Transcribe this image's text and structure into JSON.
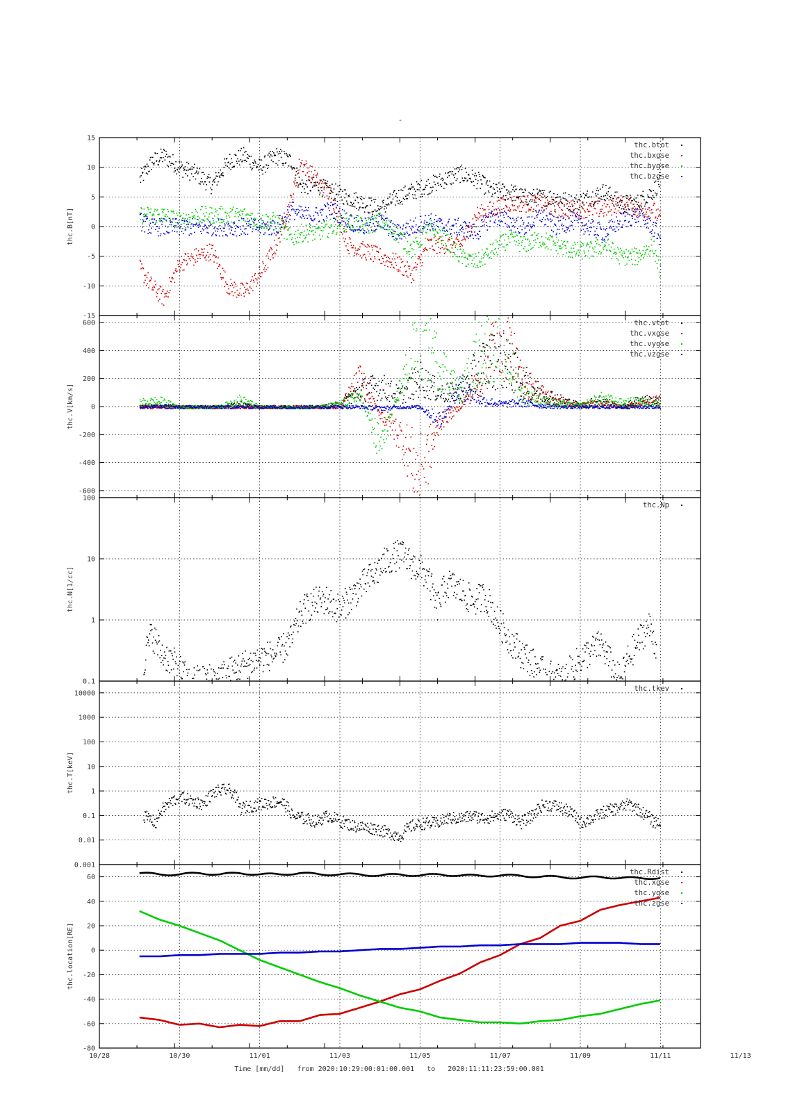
{
  "top_mark": "-",
  "footer": {
    "time_label": "Time [mm/dd]",
    "from_label": "from",
    "start": "2020:10:29:00:01:00.001",
    "to_label": "to",
    "end": "2020:11:11:23:59:00.001"
  },
  "colors": {
    "black": "#000000",
    "red": "#cc0000",
    "green": "#00cc00",
    "blue": "#0000cc"
  },
  "chart_data": [
    {
      "type": "scatter",
      "id": "B",
      "ylabel": "thc.B[nT]",
      "ylim": [
        -15,
        15
      ],
      "yscale": "linear",
      "ytick_labels": [
        "15",
        "10",
        "5",
        "0",
        "-5",
        "-10",
        "-15"
      ],
      "xlim": [
        0,
        15
      ],
      "x_tick_labels": [
        "10/28",
        "10/30",
        "11/01",
        "11/03",
        "11/05",
        "11/07",
        "11/09",
        "11/11",
        "11/13"
      ],
      "grid": true,
      "legend_position": "top-right",
      "series": [
        {
          "name": "thc.btot",
          "color": "#000000",
          "x": [
            1,
            1.3,
            1.6,
            2,
            2.4,
            2.8,
            3.2,
            3.6,
            4,
            4.4,
            4.8,
            5,
            5.4,
            5.8,
            6.2,
            6.6,
            7,
            7.4,
            7.8,
            8.2,
            8.6,
            9,
            9.4,
            9.8,
            10.2,
            10.6,
            11,
            11.4,
            11.8,
            12.2,
            12.6,
            13,
            13.4,
            13.8,
            14
          ],
          "y": [
            8,
            11,
            12,
            10,
            9,
            7,
            11,
            12,
            10,
            12,
            11,
            7,
            7,
            6,
            5,
            4,
            3,
            5,
            6,
            7,
            8,
            9,
            8,
            6,
            6,
            5,
            5,
            5,
            4,
            5,
            6,
            4,
            4,
            6,
            8
          ]
        },
        {
          "name": "thc.bxgse",
          "color": "#cc0000",
          "x": [
            1,
            1.3,
            1.6,
            2,
            2.4,
            2.8,
            3.2,
            3.6,
            4,
            4.4,
            4.8,
            5,
            5.4,
            5.8,
            6.2,
            6.6,
            7,
            7.4,
            7.8,
            8.2,
            8.6,
            9,
            9.4,
            9.8,
            10.2,
            10.6,
            11,
            11.4,
            11.8,
            12.2,
            12.6,
            13,
            13.4,
            13.8,
            14
          ],
          "y": [
            -7,
            -10,
            -12,
            -6,
            -5,
            -4,
            -10,
            -11,
            -8,
            -3,
            5,
            11,
            8,
            5,
            -3,
            -4,
            -5,
            -6,
            -8,
            -3,
            -3,
            -3,
            2,
            3,
            4,
            4,
            4,
            3,
            3,
            3,
            3,
            4,
            3,
            3,
            1
          ]
        },
        {
          "name": "thc.bygse",
          "color": "#00cc00",
          "x": [
            1,
            1.3,
            1.6,
            2,
            2.4,
            2.8,
            3.2,
            3.6,
            4,
            4.4,
            4.8,
            5,
            5.4,
            5.8,
            6.2,
            6.6,
            7,
            7.4,
            7.8,
            8.2,
            8.6,
            9,
            9.4,
            9.8,
            10.2,
            10.6,
            11,
            11.4,
            11.8,
            12.2,
            12.6,
            13,
            13.4,
            13.8,
            14
          ],
          "y": [
            2,
            2,
            2,
            1,
            2,
            2,
            2,
            2,
            1,
            1,
            -2,
            -1,
            -1,
            0,
            1,
            0,
            1,
            -1,
            -4,
            0,
            -2,
            -5,
            -6,
            -4,
            -2,
            -3,
            -2,
            -3,
            -4,
            -4,
            -3,
            -5,
            -5,
            -3,
            -8
          ]
        },
        {
          "name": "thc.bzgse",
          "color": "#0000cc",
          "x": [
            1,
            1.3,
            1.6,
            2,
            2.4,
            2.8,
            3.2,
            3.6,
            4,
            4.4,
            4.8,
            5,
            5.4,
            5.8,
            6.2,
            6.6,
            7,
            7.4,
            7.8,
            8.2,
            8.6,
            9,
            9.4,
            9.8,
            10.2,
            10.6,
            11,
            11.4,
            11.8,
            12.2,
            12.6,
            13,
            13.4,
            13.8,
            14
          ],
          "y": [
            1,
            0,
            0,
            0,
            0,
            0,
            0,
            0,
            0,
            0,
            3,
            2,
            2,
            3,
            1,
            0,
            1,
            -1,
            0,
            1,
            0,
            0,
            -1,
            2,
            1,
            0,
            2,
            0,
            1,
            0,
            -1,
            1,
            2,
            0,
            -2
          ]
        }
      ]
    },
    {
      "type": "scatter",
      "id": "V",
      "ylabel": "thc.V[km/s]",
      "ylim": [
        -650,
        650
      ],
      "yscale": "linear",
      "ytick_values": [
        600,
        400,
        200,
        0,
        -200,
        -400,
        -600
      ],
      "ytick_labels": [
        "600",
        "400",
        "200",
        "0",
        "-200",
        "-400",
        "-600"
      ],
      "xlim": [
        0,
        15
      ],
      "grid": true,
      "legend_position": "top-right",
      "series": [
        {
          "name": "thc.vtot",
          "color": "#000000",
          "x": [
            1,
            1.5,
            2,
            2.5,
            3,
            3.5,
            4,
            4.5,
            5,
            5.5,
            6,
            6.5,
            7,
            7.5,
            8,
            8.5,
            9,
            9.5,
            10,
            10.5,
            11,
            11.5,
            12,
            12.5,
            13,
            13.5,
            14
          ],
          "y": [
            0,
            10,
            0,
            0,
            0,
            20,
            0,
            0,
            0,
            0,
            20,
            120,
            150,
            80,
            200,
            100,
            100,
            300,
            350,
            200,
            100,
            50,
            10,
            50,
            0,
            50,
            40
          ]
        },
        {
          "name": "thc.vxgse",
          "color": "#cc0000",
          "x": [
            1,
            1.5,
            2,
            2.5,
            3,
            3.5,
            4,
            4.5,
            5,
            5.5,
            6,
            6.5,
            7,
            7.5,
            8,
            8.5,
            9,
            9.5,
            10,
            10.5,
            11,
            11.5,
            12,
            12.5,
            13,
            13.5,
            14
          ],
          "y": [
            0,
            0,
            0,
            0,
            0,
            0,
            0,
            0,
            0,
            0,
            0,
            200,
            -50,
            -200,
            -500,
            -100,
            0,
            200,
            600,
            200,
            100,
            30,
            10,
            30,
            0,
            20,
            50
          ]
        },
        {
          "name": "thc.vygse",
          "color": "#00cc00",
          "x": [
            1,
            1.5,
            2,
            2.5,
            3,
            3.5,
            4,
            4.5,
            5,
            5.5,
            6,
            6.5,
            7,
            7.5,
            8,
            8.5,
            9,
            9.5,
            10,
            10.5,
            11,
            11.5,
            12,
            12.5,
            13,
            13.5,
            14
          ],
          "y": [
            30,
            40,
            0,
            0,
            0,
            50,
            0,
            0,
            0,
            0,
            20,
            80,
            -300,
            150,
            500,
            300,
            100,
            400,
            500,
            100,
            50,
            20,
            10,
            60,
            30,
            40,
            20
          ]
        },
        {
          "name": "thc.vzgse",
          "color": "#0000cc",
          "x": [
            1,
            1.5,
            2,
            2.5,
            3,
            3.5,
            4,
            4.5,
            5,
            5.5,
            6,
            6.5,
            7,
            7.5,
            8,
            8.5,
            9,
            9.5,
            10,
            10.5,
            11,
            11.5,
            12,
            12.5,
            13,
            13.5,
            14
          ],
          "y": [
            0,
            0,
            0,
            0,
            0,
            0,
            0,
            0,
            0,
            0,
            0,
            0,
            -10,
            0,
            0,
            -100,
            150,
            50,
            20,
            30,
            10,
            0,
            0,
            0,
            0,
            0,
            0
          ]
        }
      ]
    },
    {
      "type": "scatter",
      "id": "N",
      "ylabel": "thc.N[1/cc]",
      "ylim": [
        0.1,
        100
      ],
      "yscale": "log",
      "ytick_values": [
        100,
        10,
        1,
        0.1
      ],
      "ytick_labels": [
        "100",
        "10",
        "1",
        "0.1"
      ],
      "xlim": [
        0,
        15
      ],
      "grid": true,
      "legend_position": "top-right",
      "series": [
        {
          "name": "thc.Np",
          "color": "#000000",
          "x": [
            1.1,
            1.3,
            1.5,
            2.2,
            3,
            3.3,
            4.5,
            4.8,
            5.1,
            5.4,
            5.6,
            6,
            6.3,
            6.6,
            6.9,
            7.2,
            7.5,
            7.8,
            8.1,
            8.4,
            8.7,
            9,
            9.3,
            9.6,
            9.9,
            10.2,
            10.5,
            10.8,
            11,
            11.3,
            11.6,
            11.9,
            12.2,
            12.5,
            12.8,
            13,
            13.4,
            13.7,
            13.9
          ],
          "y": [
            0.2,
            0.6,
            0.3,
            0.1,
            0.12,
            0.15,
            0.3,
            0.5,
            1.5,
            2,
            2.2,
            1.5,
            2.5,
            4,
            6,
            10,
            12,
            8,
            6,
            1.5,
            4,
            3,
            2,
            2.5,
            1,
            0.5,
            0.3,
            0.2,
            0.15,
            0.12,
            0.11,
            0.2,
            0.3,
            0.4,
            0.15,
            0.1,
            0.4,
            0.8,
            0.3
          ]
        }
      ]
    },
    {
      "type": "scatter",
      "id": "T",
      "ylabel": "thc.T[keV]",
      "ylim": [
        0.001,
        30000
      ],
      "yscale": "log",
      "ytick_values": [
        10000,
        1000,
        100,
        10,
        1,
        0.1,
        0.01,
        0.001
      ],
      "ytick_labels": [
        "10000",
        "1000",
        "100",
        "10",
        "1",
        "0.1",
        "0.01",
        "0.001"
      ],
      "xlim": [
        0,
        15
      ],
      "grid": true,
      "legend_position": "top-right",
      "series": [
        {
          "name": "thc.tkev",
          "color": "#000000",
          "x": [
            1.1,
            1.4,
            1.7,
            2,
            2.3,
            2.6,
            2.9,
            3.2,
            3.5,
            4.5,
            4.8,
            5.1,
            5.4,
            5.7,
            6,
            6.3,
            6.6,
            6.9,
            7.2,
            7.5,
            7.8,
            8.1,
            8.4,
            8.7,
            9,
            9.3,
            9.6,
            9.9,
            10.2,
            10.5,
            10.8,
            11.1,
            11.4,
            11.7,
            12,
            12.3,
            12.6,
            12.9,
            13.2,
            13.5,
            13.8,
            14
          ],
          "y": [
            0.1,
            0.05,
            0.3,
            0.6,
            0.4,
            0.3,
            1,
            1.2,
            0.2,
            0.4,
            0.1,
            0.08,
            0.06,
            0.1,
            0.06,
            0.04,
            0.035,
            0.03,
            0.02,
            0.015,
            0.04,
            0.05,
            0.05,
            0.08,
            0.08,
            0.1,
            0.08,
            0.1,
            0.12,
            0.05,
            0.1,
            0.3,
            0.25,
            0.15,
            0.05,
            0.08,
            0.15,
            0.2,
            0.3,
            0.15,
            0.06,
            0.05
          ]
        }
      ]
    },
    {
      "type": "line",
      "id": "location",
      "ylabel": "thc.location[RE]",
      "ylim": [
        -80,
        70
      ],
      "yscale": "linear",
      "ytick_values": [
        60,
        40,
        20,
        0,
        -20,
        -40,
        -60,
        -80
      ],
      "ytick_labels": [
        "60",
        "40",
        "20",
        "0",
        "-20",
        "-40",
        "-60",
        "-80"
      ],
      "xlim": [
        0,
        15
      ],
      "grid": true,
      "legend_position": "top-right",
      "series": [
        {
          "name": "thc.Rdist",
          "color": "#000000",
          "x": [
            1,
            1.5,
            2,
            2.5,
            3,
            3.5,
            4,
            4.5,
            5,
            5.5,
            6,
            6.5,
            7,
            7.5,
            8,
            8.5,
            9,
            9.5,
            10,
            10.5,
            11,
            11.5,
            12,
            12.5,
            13,
            13.5,
            14
          ],
          "y": [
            63,
            62,
            62,
            63,
            62,
            63,
            62,
            62,
            63,
            62,
            62,
            62,
            61,
            62,
            61,
            62,
            61,
            61,
            61,
            61,
            60,
            60,
            59,
            60,
            59,
            59,
            59
          ]
        },
        {
          "name": "thc.xgse",
          "color": "#cc0000",
          "x": [
            1,
            1.5,
            2,
            2.5,
            3,
            3.5,
            4,
            4.5,
            5,
            5.5,
            6,
            6.5,
            7,
            7.5,
            8,
            8.5,
            9,
            9.5,
            10,
            10.5,
            11,
            11.5,
            12,
            12.5,
            13,
            13.5,
            14
          ],
          "y": [
            -55,
            -57,
            -61,
            -60,
            -63,
            -61,
            -62,
            -58,
            -58,
            -53,
            -52,
            -47,
            -42,
            -36,
            -32,
            -25,
            -19,
            -10,
            -4,
            5,
            10,
            20,
            24,
            33,
            37,
            40,
            43
          ]
        },
        {
          "name": "thc.ygse",
          "color": "#00cc00",
          "x": [
            1,
            1.5,
            2,
            2.5,
            3,
            3.5,
            4,
            4.5,
            5,
            5.5,
            6,
            6.5,
            7,
            7.5,
            8,
            8.5,
            9,
            9.5,
            10,
            10.5,
            11,
            11.5,
            12,
            12.5,
            13,
            13.5,
            14
          ],
          "y": [
            32,
            25,
            20,
            14,
            8,
            0,
            -8,
            -14,
            -20,
            -26,
            -31,
            -37,
            -42,
            -47,
            -50,
            -55,
            -57,
            -59,
            -59,
            -60,
            -58,
            -57,
            -54,
            -52,
            -48,
            -44,
            -41
          ]
        },
        {
          "name": "thc.zgse",
          "color": "#0000cc",
          "x": [
            1,
            1.5,
            2,
            2.5,
            3,
            3.5,
            4,
            4.5,
            5,
            5.5,
            6,
            6.5,
            7,
            7.5,
            8,
            8.5,
            9,
            9.5,
            10,
            10.5,
            11,
            11.5,
            12,
            12.5,
            13,
            13.5,
            14
          ],
          "y": [
            -5,
            -5,
            -4,
            -4,
            -3,
            -3,
            -3,
            -2,
            -2,
            -1,
            -1,
            0,
            1,
            1,
            2,
            3,
            3,
            4,
            4,
            5,
            5,
            5,
            6,
            6,
            6,
            5,
            5
          ]
        }
      ]
    }
  ]
}
